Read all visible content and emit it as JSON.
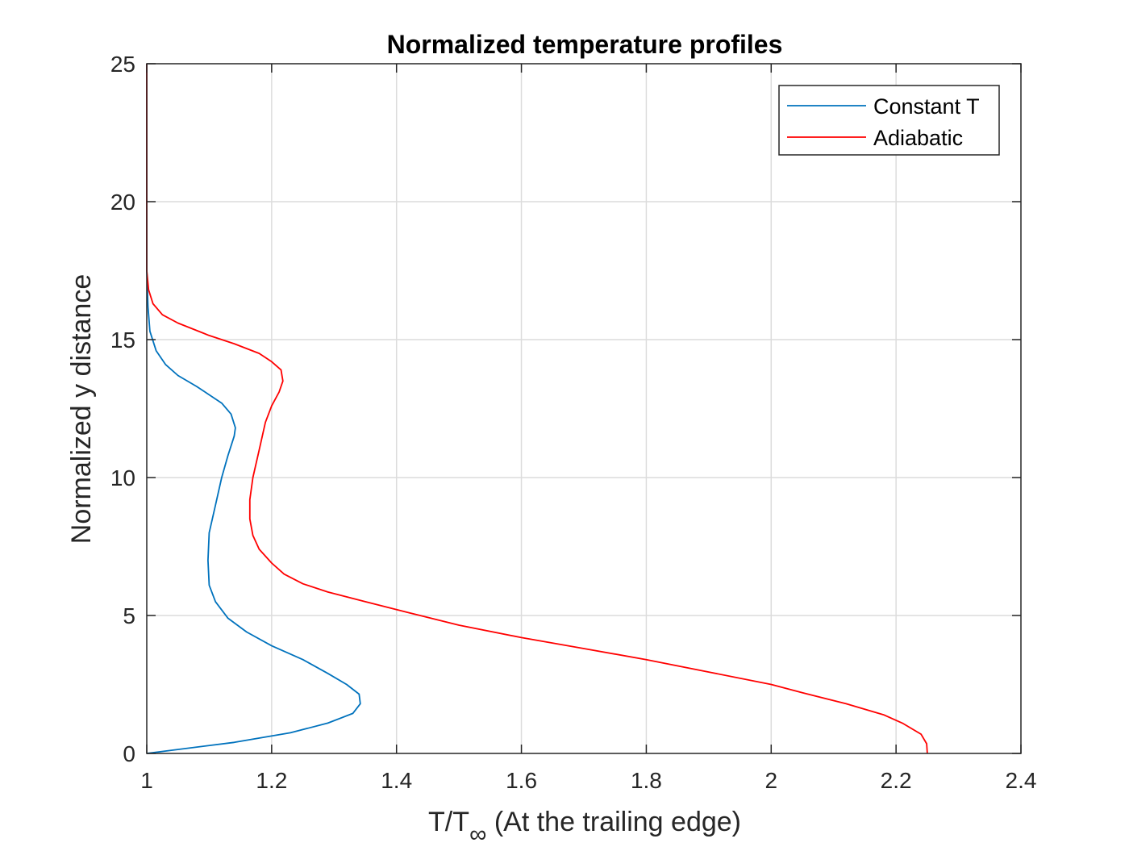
{
  "chart_data": {
    "type": "line",
    "title": "Normalized temperature profiles",
    "xlabel_main": "T/T",
    "xlabel_sub": "∞",
    "xlabel_rest": " (At the trailing edge)",
    "ylabel": "Normalized y distance",
    "xlim": [
      1,
      2.4
    ],
    "ylim": [
      0,
      25
    ],
    "xticks": [
      1,
      1.2,
      1.4,
      1.6,
      1.8,
      2,
      2.2,
      2.4
    ],
    "xtick_labels": [
      "1",
      "1.2",
      "1.4",
      "1.6",
      "1.8",
      "2",
      "2.2",
      "2.4"
    ],
    "yticks": [
      0,
      5,
      10,
      15,
      20,
      25
    ],
    "ytick_labels": [
      "0",
      "5",
      "10",
      "15",
      "20",
      "25"
    ],
    "grid": true,
    "legend_position": "top-right",
    "series": [
      {
        "name": "Constant T",
        "color": "#0072bd",
        "points": [
          [
            1.0,
            0.0
          ],
          [
            1.14,
            0.4
          ],
          [
            1.23,
            0.75
          ],
          [
            1.29,
            1.1
          ],
          [
            1.33,
            1.45
          ],
          [
            1.342,
            1.8
          ],
          [
            1.34,
            2.15
          ],
          [
            1.32,
            2.5
          ],
          [
            1.29,
            2.9
          ],
          [
            1.25,
            3.4
          ],
          [
            1.2,
            3.9
          ],
          [
            1.16,
            4.4
          ],
          [
            1.13,
            4.9
          ],
          [
            1.11,
            5.5
          ],
          [
            1.1,
            6.1
          ],
          [
            1.098,
            7.0
          ],
          [
            1.1,
            8.0
          ],
          [
            1.11,
            9.0
          ],
          [
            1.12,
            10.0
          ],
          [
            1.13,
            10.8
          ],
          [
            1.14,
            11.5
          ],
          [
            1.142,
            11.8
          ],
          [
            1.135,
            12.3
          ],
          [
            1.12,
            12.7
          ],
          [
            1.08,
            13.3
          ],
          [
            1.05,
            13.7
          ],
          [
            1.03,
            14.1
          ],
          [
            1.015,
            14.6
          ],
          [
            1.005,
            15.3
          ],
          [
            1.002,
            16.2
          ],
          [
            1.0,
            17.5
          ],
          [
            1.0,
            25.0
          ]
        ]
      },
      {
        "name": "Adiabatic",
        "color": "#ff0000",
        "points": [
          [
            2.25,
            0.0
          ],
          [
            2.249,
            0.35
          ],
          [
            2.24,
            0.7
          ],
          [
            2.21,
            1.1
          ],
          [
            2.18,
            1.4
          ],
          [
            2.12,
            1.8
          ],
          [
            2.05,
            2.2
          ],
          [
            2.0,
            2.5
          ],
          [
            1.9,
            2.95
          ],
          [
            1.8,
            3.4
          ],
          [
            1.7,
            3.8
          ],
          [
            1.6,
            4.2
          ],
          [
            1.5,
            4.65
          ],
          [
            1.42,
            5.1
          ],
          [
            1.35,
            5.5
          ],
          [
            1.29,
            5.85
          ],
          [
            1.25,
            6.15
          ],
          [
            1.22,
            6.5
          ],
          [
            1.2,
            6.9
          ],
          [
            1.18,
            7.4
          ],
          [
            1.17,
            7.9
          ],
          [
            1.165,
            8.5
          ],
          [
            1.165,
            9.2
          ],
          [
            1.17,
            10.0
          ],
          [
            1.18,
            11.0
          ],
          [
            1.19,
            12.0
          ],
          [
            1.2,
            12.6
          ],
          [
            1.212,
            13.1
          ],
          [
            1.218,
            13.5
          ],
          [
            1.215,
            13.9
          ],
          [
            1.2,
            14.2
          ],
          [
            1.18,
            14.5
          ],
          [
            1.14,
            14.85
          ],
          [
            1.1,
            15.15
          ],
          [
            1.05,
            15.6
          ],
          [
            1.025,
            15.9
          ],
          [
            1.01,
            16.3
          ],
          [
            1.003,
            16.8
          ],
          [
            1.0,
            17.5
          ],
          [
            1.0,
            25.0
          ]
        ]
      }
    ]
  }
}
